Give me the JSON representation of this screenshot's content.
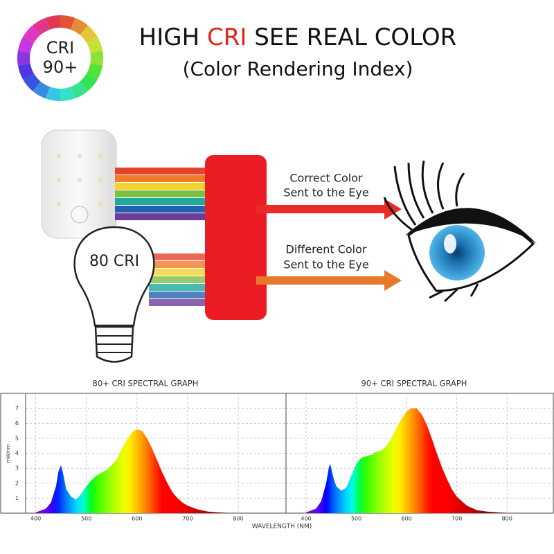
{
  "header": {
    "title_start": "HIGH",
    "title_highlight": "CRI",
    "title_end": "SEE REAL COLOR",
    "subtitle": "(Color Rendering Index)"
  },
  "badge": {
    "line1": "CRI",
    "line2": "90+"
  },
  "illustration": {
    "bulb_label": "80 CRI",
    "correct_line1": "Correct Color",
    "correct_line2": "Sent to the Eye",
    "different_line1": "Different Color",
    "different_line2": "Sent to the Eye"
  },
  "wavelength_label": "WAVELENGTH (NM)",
  "chart_data": [
    {
      "type": "area",
      "title": "80+ CRI SPECTRAL GRAPH",
      "ylabel": "mW/nm",
      "x": [
        400,
        420,
        430,
        440,
        445,
        450,
        455,
        460,
        470,
        480,
        490,
        500,
        510,
        520,
        530,
        540,
        550,
        560,
        570,
        580,
        590,
        600,
        610,
        620,
        630,
        640,
        650,
        660,
        670,
        680,
        690,
        700,
        720,
        740,
        760,
        780
      ],
      "values": [
        0.05,
        0.3,
        0.7,
        1.8,
        2.8,
        3.2,
        2.5,
        1.6,
        1.1,
        0.9,
        1.3,
        1.8,
        2.2,
        2.5,
        2.7,
        2.9,
        3.2,
        3.6,
        4.3,
        4.9,
        5.4,
        5.6,
        5.5,
        5.0,
        4.3,
        3.5,
        2.7,
        2.0,
        1.4,
        1.0,
        0.7,
        0.5,
        0.25,
        0.1,
        0.05,
        0.02
      ],
      "xlim": [
        380,
        893
      ],
      "ylim": [
        0,
        8
      ],
      "xticks": [
        400,
        500,
        600,
        700,
        800
      ],
      "yticks": [
        1,
        2,
        3,
        4,
        5,
        6,
        7
      ],
      "ytick_labels": true,
      "grid": true
    },
    {
      "type": "area",
      "title": "90+ CRI SPECTRAL GRAPH",
      "x": [
        400,
        420,
        430,
        440,
        445,
        448,
        455,
        460,
        470,
        480,
        490,
        500,
        510,
        520,
        530,
        540,
        550,
        560,
        570,
        580,
        590,
        600,
        610,
        620,
        630,
        640,
        650,
        660,
        670,
        680,
        690,
        700,
        720,
        740,
        760,
        780,
        800
      ],
      "values": [
        0.05,
        0.3,
        0.8,
        2.0,
        3.0,
        3.3,
        2.3,
        1.8,
        1.5,
        1.7,
        2.5,
        3.3,
        3.7,
        3.8,
        3.9,
        4.1,
        4.2,
        4.5,
        5.0,
        5.7,
        6.3,
        6.8,
        7.0,
        7.0,
        6.6,
        5.9,
        5.0,
        4.0,
        3.1,
        2.3,
        1.6,
        1.1,
        0.5,
        0.2,
        0.1,
        0.05,
        0.02
      ],
      "xlim": [
        360,
        892
      ],
      "ylim": [
        0,
        8
      ],
      "xticks": [
        400,
        500,
        600,
        700,
        800
      ],
      "yticks": [
        1,
        2,
        3,
        4,
        5,
        6,
        7
      ],
      "ytick_labels": false,
      "grid": true
    }
  ]
}
